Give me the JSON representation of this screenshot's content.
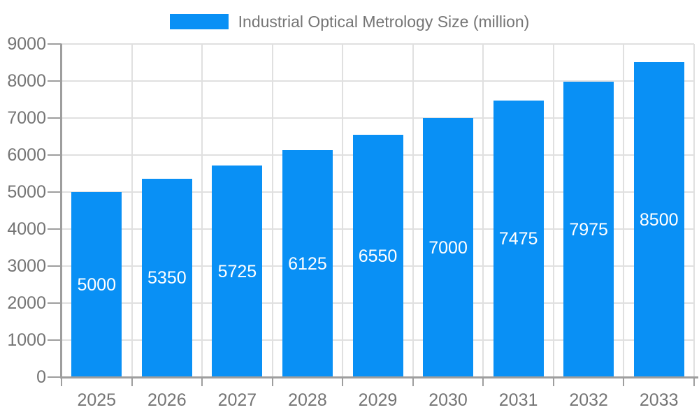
{
  "legend": {
    "label": "Industrial Optical Metrology Size (million)"
  },
  "colors": {
    "bar": "#0990F5",
    "axis_text": "#757575",
    "grid_line": "#E0E0E0",
    "axis_line": "#9E9E9E",
    "value_label": "#FFFFFF",
    "background": "#FFFFFF"
  },
  "chart_data": {
    "type": "bar",
    "title": "Industrial Optical Metrology Size (million)",
    "categories": [
      "2025",
      "2026",
      "2027",
      "2028",
      "2029",
      "2030",
      "2031",
      "2032",
      "2033"
    ],
    "values": [
      5000,
      5350,
      5725,
      6125,
      6550,
      7000,
      7475,
      7975,
      8500
    ],
    "series_name": "Industrial Optical Metrology Size (million)",
    "xlabel": "",
    "ylabel": "",
    "ylim": [
      0,
      9000
    ],
    "ytick_step": 1000,
    "ytick_labels": [
      "0",
      "1000",
      "2000",
      "3000",
      "4000",
      "5000",
      "6000",
      "7000",
      "8000",
      "9000"
    ],
    "grid": true,
    "legend_position": "top",
    "value_labels_shown": true,
    "value_label_position": "center-of-bar"
  }
}
